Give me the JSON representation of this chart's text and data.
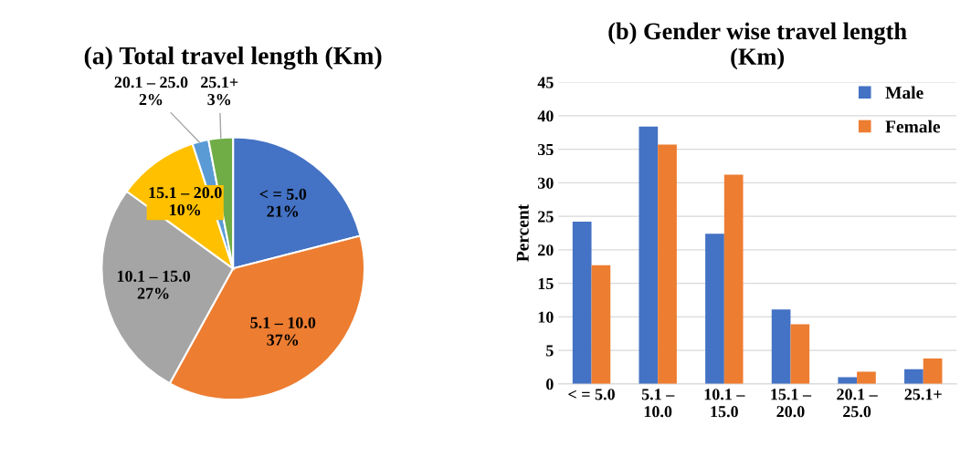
{
  "chart_data": [
    {
      "type": "pie",
      "title": "(a) Total travel length (Km)",
      "categories": [
        "< = 5.0",
        "5.1 – 10.0",
        "10.1 – 15.0",
        "15.1 – 20.0",
        "20.1 – 25.0",
        "25.1+"
      ],
      "values": [
        21,
        37,
        27,
        10,
        2,
        3
      ],
      "value_labels": [
        "21%",
        "37%",
        "27%",
        "10%",
        "2%",
        "3%"
      ],
      "colors": [
        "#4472c4",
        "#ed7d31",
        "#a5a5a5",
        "#ffc000",
        "#5b9bd5",
        "#70ad47"
      ]
    },
    {
      "type": "bar",
      "title": "(b) Gender wise travel length\n(Km)",
      "ylabel": "Percent",
      "categories": [
        "< = 5.0",
        "5.1 –\n10.0",
        "10.1 –\n15.0",
        "15.1 –\n20.0",
        "20.1 –\n25.0",
        "25.1+"
      ],
      "series": [
        {
          "name": "Male",
          "color": "#4472c4",
          "values": [
            24.2,
            38.4,
            22.4,
            11.1,
            1.0,
            2.2
          ]
        },
        {
          "name": "Female",
          "color": "#ed7d31",
          "values": [
            17.7,
            35.7,
            31.2,
            8.9,
            1.8,
            3.8
          ]
        }
      ],
      "ylim": [
        0,
        45
      ],
      "yticks": [
        0,
        5,
        10,
        15,
        20,
        25,
        30,
        35,
        40,
        45
      ],
      "grid": "y",
      "legend": "top right"
    }
  ]
}
